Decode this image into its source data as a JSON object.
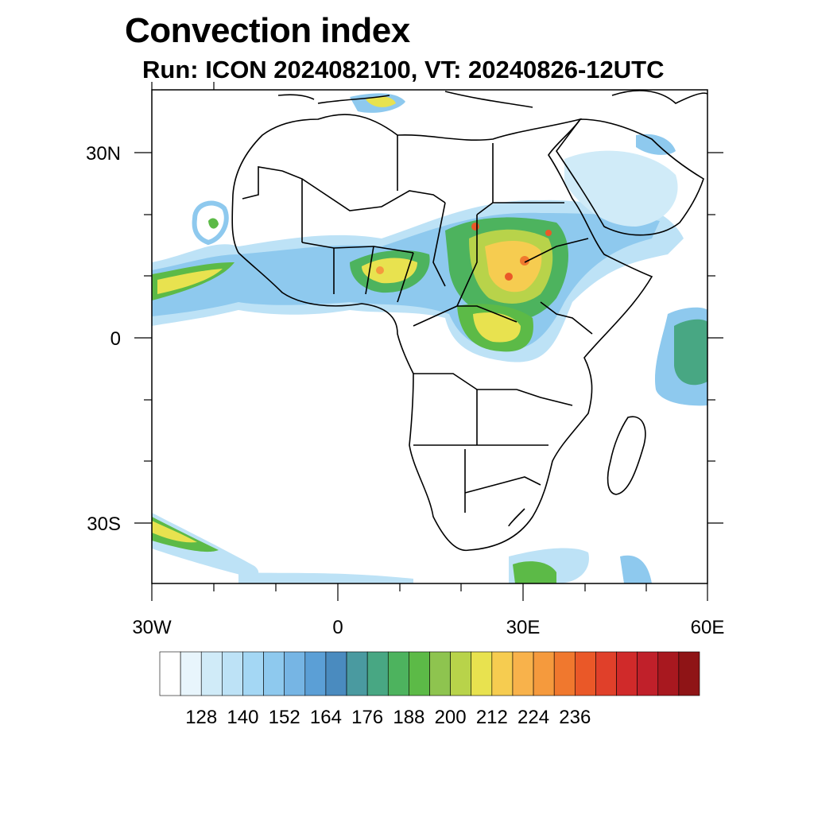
{
  "title": "Convection index",
  "subtitle": "Run: ICON 2024082100,  VT: 20240826-12UTC",
  "latitude_labels": [
    "30N",
    "0",
    "30S"
  ],
  "longitude_labels": [
    "30W",
    "0",
    "30E",
    "60E"
  ],
  "colorbar": {
    "colors": [
      "#ffffff",
      "#e8f5fc",
      "#d0ebf8",
      "#bde2f6",
      "#a4d7f4",
      "#8ec9ee",
      "#76b5e4",
      "#5b9fd6",
      "#4a8bbf",
      "#4a9aa0",
      "#48a783",
      "#4db35e",
      "#5cba47",
      "#8ec44f",
      "#b8d34a",
      "#e8e24f",
      "#f6cc50",
      "#f8b24b",
      "#f59a3d",
      "#f0782e",
      "#ea5828",
      "#e0402a",
      "#d02a2a",
      "#c0202a",
      "#a8181f",
      "#8f1416"
    ],
    "tick_labels": [
      "128",
      "140",
      "152",
      "164",
      "176",
      "188",
      "200",
      "212",
      "224",
      "236"
    ]
  }
}
